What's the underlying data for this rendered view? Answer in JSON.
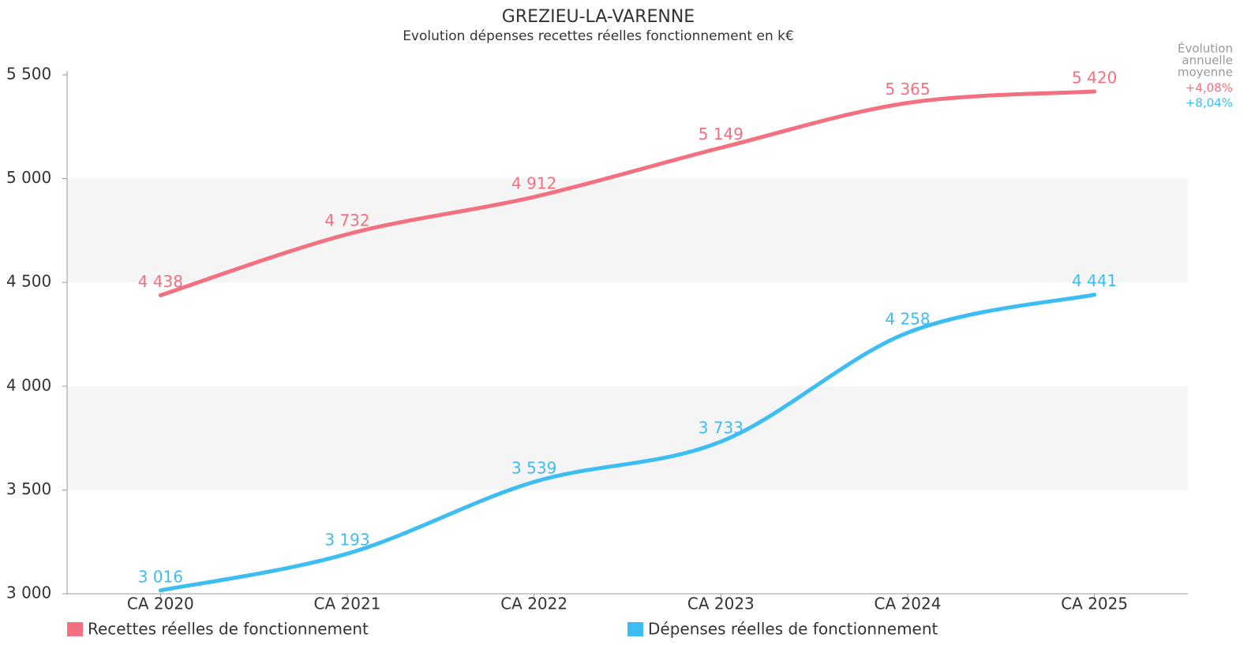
{
  "chart_data": {
    "type": "line",
    "title": "GREZIEU-LA-VARENNE",
    "subtitle": "Evolution dépenses recettes réelles fonctionnement en k€",
    "categories": [
      "CA 2020",
      "CA 2021",
      "CA 2022",
      "CA 2023",
      "CA 2024",
      "CA 2025"
    ],
    "series": [
      {
        "name": "Recettes réelles de fonctionnement",
        "color": "#f2707f",
        "values": [
          4438,
          4732,
          4912,
          5149,
          5365,
          5420
        ],
        "value_labels": [
          "4 438",
          "4 732",
          "4 912",
          "5 149",
          "5 365",
          "5 420"
        ],
        "annotation": "+4,08%"
      },
      {
        "name": "Dépenses réelles de fonctionnement",
        "color": "#3dbdf2",
        "values": [
          3016,
          3193,
          3539,
          3733,
          4258,
          4441
        ],
        "value_labels": [
          "3 016",
          "3 193",
          "3 539",
          "3 733",
          "4 258",
          "4 441"
        ],
        "annotation": "+8,04%"
      }
    ],
    "annotation_title": [
      "Évolution",
      "annuelle",
      "moyenne"
    ],
    "ylim": [
      3000,
      5500
    ],
    "yticks": [
      {
        "value": 3000,
        "label": "3 000"
      },
      {
        "value": 3500,
        "label": "3 500"
      },
      {
        "value": 4000,
        "label": "4 000"
      },
      {
        "value": 4500,
        "label": "4 500"
      },
      {
        "value": 5000,
        "label": "5 000"
      },
      {
        "value": 5500,
        "label": "5 500"
      }
    ],
    "grid": "bands",
    "legend": "bottom"
  }
}
